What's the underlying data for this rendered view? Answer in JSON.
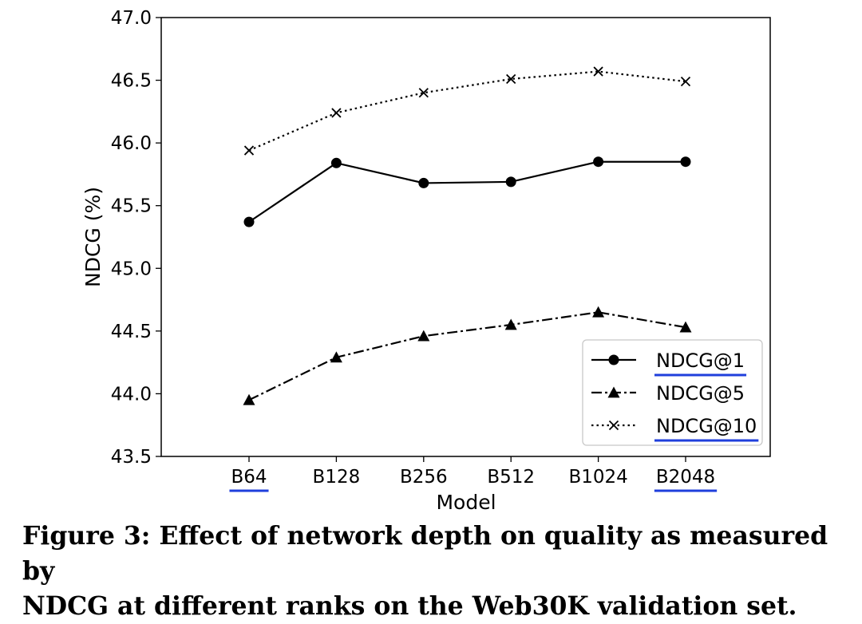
{
  "chart_data": {
    "type": "line",
    "title": "",
    "xlabel": "Model",
    "ylabel": "NDCG (%)",
    "categories": [
      "B64",
      "B128",
      "B256",
      "B512",
      "B1024",
      "B2048"
    ],
    "ylim": [
      43.5,
      47.0
    ],
    "yticks": [
      "43.5",
      "44.0",
      "44.5",
      "45.0",
      "45.5",
      "46.0",
      "46.5",
      "47.0"
    ],
    "grid": false,
    "legend_position": "lower-right",
    "highlighted_labels": [
      "B64",
      "B2048",
      "NDCG@1",
      "NDCG@10"
    ],
    "highlight_color": "#1f3fdc",
    "series": [
      {
        "name": "NDCG@1",
        "marker": "circle",
        "line": "solid",
        "values": [
          45.37,
          45.84,
          45.68,
          45.69,
          45.85,
          45.85
        ]
      },
      {
        "name": "NDCG@5",
        "marker": "triangle",
        "line": "dashdot",
        "values": [
          43.95,
          44.29,
          44.46,
          44.55,
          44.65,
          44.53
        ]
      },
      {
        "name": "NDCG@10",
        "marker": "x",
        "line": "dotted",
        "values": [
          45.94,
          46.24,
          46.4,
          46.51,
          46.57,
          46.49
        ]
      }
    ]
  },
  "caption": {
    "line1": "Figure 3: Effect of network depth on quality as measured by",
    "line2": "NDCG at different ranks on the Web30K validation set."
  }
}
